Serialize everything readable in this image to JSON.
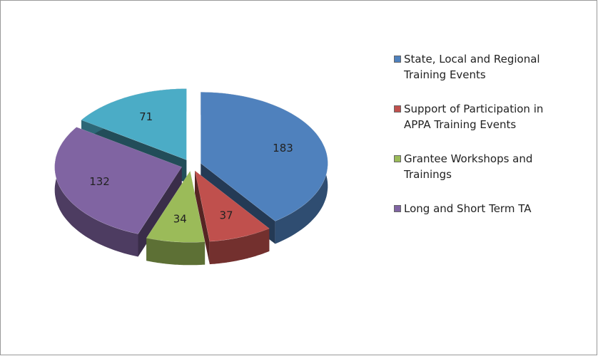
{
  "chart_data": {
    "type": "pie3d",
    "categories": [
      "State, Local and Regional Training Events",
      "Support of Participation in APPA Training Events",
      "Grantee Workshops and Trainings",
      "Long and Short Term TA",
      null
    ],
    "values": [
      183,
      37,
      34,
      132,
      71
    ],
    "colors": [
      "#4f81bd",
      "#c0504d",
      "#9bbb59",
      "#8064a2",
      "#4bacc6"
    ],
    "legend": "right"
  }
}
